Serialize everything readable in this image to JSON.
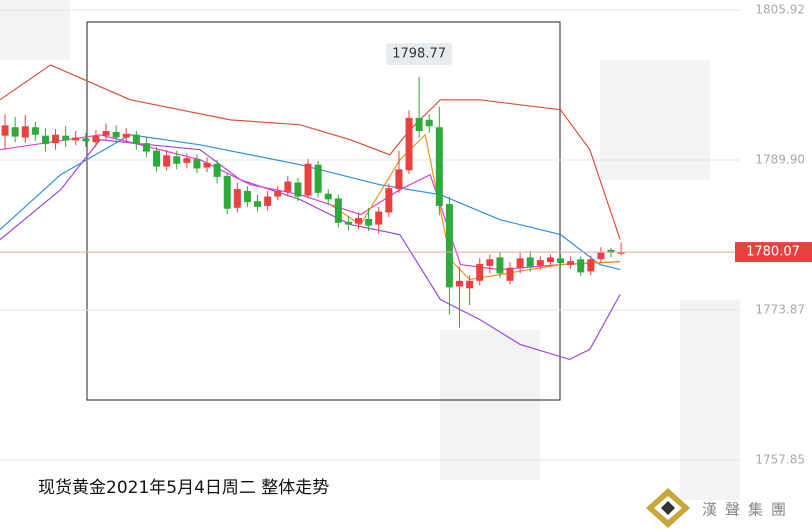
{
  "chart_data": {
    "type": "candlestick",
    "title": "现货黄金2021年5月4日周二 整体走势",
    "brand": "漢聲集團",
    "up_color": "#e8413f",
    "down_color": "#2eaa3c",
    "ylim": [
      1750.28,
      1806.99
    ],
    "xlim": [
      -0.5,
      79.9
    ],
    "yticks": [
      1805.92,
      {
        "value": 1789.9,
        "label": "1789.90"
      },
      1773.87,
      1757.85
    ],
    "grid": true,
    "candles": {
      "open": [
        1792.5,
        1793.4,
        1792.3,
        1793.4,
        1792.5,
        1791.7,
        1792.5,
        1792.0,
        1792.2,
        1791.8,
        1792.5,
        1792.9,
        1792.3,
        1792.6,
        1791.7,
        1790.9,
        1789.2,
        1790.3,
        1789.6,
        1790.0,
        1789.1,
        1789.5,
        1788.2,
        1784.8,
        1786.6,
        1785.5,
        1785.0,
        1786.0,
        1786.5,
        1787.5,
        1786.1,
        1789.4,
        1786.3,
        1785.8,
        1783.3,
        1783.1,
        1783.6,
        1783.0,
        1784.3,
        1786.8,
        1788.8,
        1794.4,
        1794.2,
        1793.4,
        1785.2,
        1776.4,
        1776.2,
        1777.0,
        1778.6,
        1779.5,
        1777.0,
        1778.4,
        1779.5,
        1778.6,
        1779.0,
        1779.4,
        1778.7,
        1779.3,
        1778.0,
        1779.3,
        1780.3,
        1779.9
      ],
      "high": [
        1794.8,
        1794.5,
        1794.7,
        1794.0,
        1793.3,
        1793.2,
        1793.5,
        1793.0,
        1792.8,
        1793.1,
        1793.8,
        1793.6,
        1793.3,
        1793.0,
        1792.4,
        1791.3,
        1791.0,
        1790.9,
        1790.6,
        1790.5,
        1790.2,
        1789.9,
        1788.5,
        1787.5,
        1787.1,
        1786.2,
        1786.6,
        1787.1,
        1788.2,
        1788.0,
        1790.0,
        1789.8,
        1786.8,
        1786.2,
        1783.9,
        1784.3,
        1784.8,
        1784.9,
        1787.4,
        1790.9,
        1795.2,
        1798.77,
        1794.8,
        1795.6,
        1786.0,
        1778.5,
        1777.6,
        1779.4,
        1779.8,
        1780.1,
        1779.0,
        1780.0,
        1780.2,
        1779.6,
        1779.8,
        1779.9,
        1779.6,
        1779.6,
        1779.7,
        1780.6,
        1780.5,
        1781.1
      ],
      "low": [
        1791.0,
        1791.8,
        1791.7,
        1791.9,
        1790.8,
        1791.0,
        1791.3,
        1791.5,
        1791.3,
        1791.3,
        1792.0,
        1791.8,
        1791.9,
        1791.0,
        1790.2,
        1788.6,
        1788.8,
        1788.9,
        1789.0,
        1788.5,
        1788.6,
        1787.4,
        1784.1,
        1784.3,
        1784.9,
        1784.4,
        1784.5,
        1785.6,
        1786.0,
        1785.5,
        1785.8,
        1785.9,
        1785.1,
        1782.7,
        1782.4,
        1782.5,
        1782.3,
        1782.0,
        1783.8,
        1786.4,
        1788.4,
        1792.3,
        1792.8,
        1784.0,
        1773.4,
        1772.0,
        1774.4,
        1776.5,
        1777.8,
        1777.3,
        1776.6,
        1777.8,
        1778.0,
        1778.2,
        1778.6,
        1778.5,
        1778.3,
        1777.5,
        1777.6,
        1778.9,
        1779.5,
        1779.7
      ],
      "close": [
        1793.6,
        1792.4,
        1793.5,
        1792.6,
        1791.6,
        1792.6,
        1792.0,
        1792.3,
        1791.9,
        1792.5,
        1793.0,
        1792.3,
        1792.7,
        1791.6,
        1790.8,
        1789.2,
        1790.4,
        1789.5,
        1790.1,
        1789.0,
        1789.6,
        1788.1,
        1784.7,
        1786.8,
        1785.4,
        1784.9,
        1786.0,
        1786.6,
        1787.6,
        1786.0,
        1789.5,
        1786.4,
        1785.7,
        1783.2,
        1783.0,
        1783.7,
        1782.9,
        1784.4,
        1786.9,
        1788.9,
        1794.4,
        1793.0,
        1793.5,
        1785.0,
        1776.3,
        1777.0,
        1777.0,
        1778.8,
        1779.3,
        1777.8,
        1778.4,
        1779.4,
        1778.5,
        1779.2,
        1779.5,
        1778.9,
        1779.1,
        1777.9,
        1779.3,
        1780.0,
        1780.0,
        1780.07
      ]
    },
    "series": [
      {
        "color": "#d9533b",
        "x": [
          -0.5,
          4.5,
          12.4,
          22.3,
          29.2,
          34.2,
          38.1,
          40.1,
          43.1,
          47.0,
          55.0,
          57.9,
          60.9
        ],
        "values": [
          1796.33,
          1800.06,
          1796.33,
          1794.19,
          1793.66,
          1792.06,
          1790.46,
          1793.13,
          1796.33,
          1796.33,
          1795.26,
          1791.0,
          1781.4
        ]
      },
      {
        "color": "#2f8fe0",
        "x": [
          -0.5,
          5.5,
          12.4,
          19.3,
          29.2,
          37.1,
          43.1,
          49.0,
          55.0,
          58.9,
          60.9
        ],
        "values": [
          1782.47,
          1788.33,
          1792.59,
          1791.53,
          1789.4,
          1787.26,
          1786.2,
          1783.53,
          1781.93,
          1778.73,
          1778.2
        ]
      },
      {
        "color": "#9b48e0",
        "x": [
          -0.5,
          5.5,
          9.4,
          14.4,
          19.3,
          23.3,
          29.2,
          34.2,
          39.1,
          43.1,
          47.0,
          51.0,
          55.9,
          57.9,
          60.9
        ],
        "values": [
          1781.4,
          1786.73,
          1792.06,
          1791.53,
          1791.0,
          1787.8,
          1785.67,
          1783.0,
          1781.93,
          1775.0,
          1772.87,
          1770.21,
          1768.61,
          1769.67,
          1775.54
        ]
      },
      {
        "color": "#e83bd6",
        "x": [
          -0.5,
          9.4,
          19.3,
          24.3,
          29.2,
          35.2,
          39.1,
          42.1,
          45.1,
          49.0,
          55.0,
          60.9
        ],
        "values": [
          1791.0,
          1792.59,
          1789.93,
          1787.26,
          1786.2,
          1784.07,
          1786.73,
          1788.33,
          1778.73,
          1778.2,
          1778.73,
          1779.05
        ]
      },
      {
        "color": "#f0921e",
        "x": [
          32.2,
          35.2,
          39.1,
          41.6,
          44.1,
          46.0,
          49.0,
          55.0,
          60.9
        ],
        "values": [
          1785.13,
          1783.0,
          1789.93,
          1792.59,
          1779.27,
          1777.14,
          1777.67,
          1778.73,
          1779.05
        ]
      }
    ]
  }
}
